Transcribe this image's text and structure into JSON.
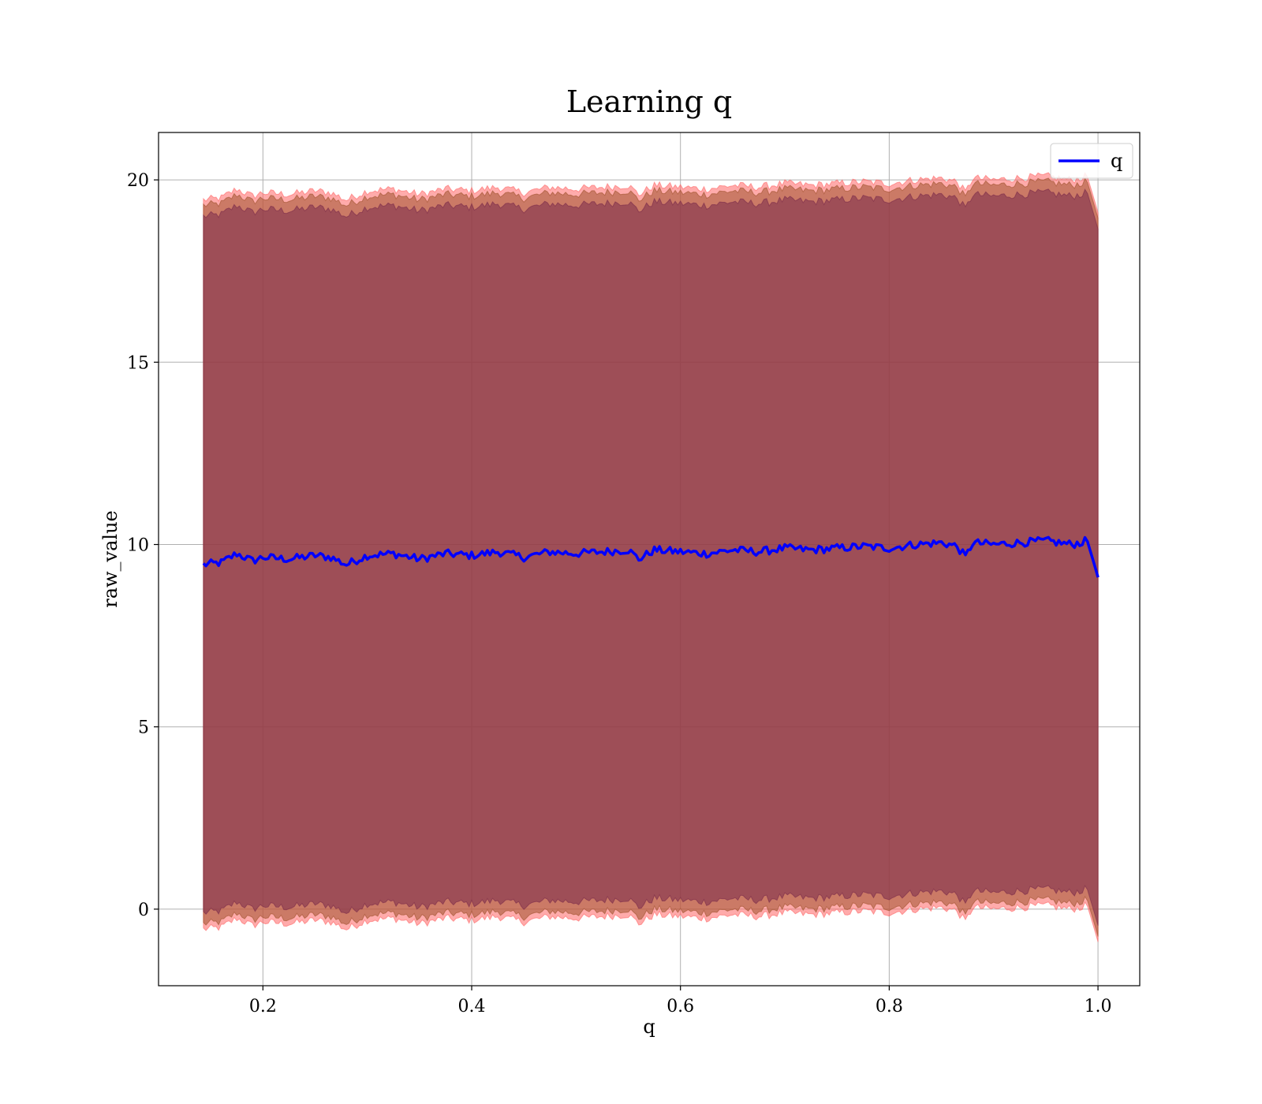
{
  "chart_data": {
    "type": "line",
    "title": "Learning q",
    "xlabel": "q",
    "ylabel": "raw_value",
    "xlim": [
      0.1,
      1.04
    ],
    "ylim": [
      -2.1,
      21.3
    ],
    "x_ticks": [
      0.2,
      0.4,
      0.6,
      0.8,
      1.0
    ],
    "x_tick_labels": [
      "0.2",
      "0.4",
      "0.6",
      "0.8",
      "1.0"
    ],
    "y_ticks": [
      0,
      5,
      10,
      15,
      20
    ],
    "y_tick_labels": [
      "0",
      "5",
      "10",
      "15",
      "20"
    ],
    "grid": true,
    "legend": {
      "position": "top-right",
      "entries": [
        {
          "label": "q",
          "color": "#0000ff"
        }
      ]
    },
    "series": [
      {
        "name": "q",
        "color": "#0000ff",
        "x": [
          0.143,
          0.16,
          0.175,
          0.19,
          0.2,
          0.225,
          0.25,
          0.265,
          0.28,
          0.3,
          0.325,
          0.35,
          0.375,
          0.4,
          0.425,
          0.45,
          0.475,
          0.5,
          0.525,
          0.55,
          0.56,
          0.575,
          0.6,
          0.625,
          0.65,
          0.675,
          0.7,
          0.725,
          0.75,
          0.775,
          0.8,
          0.825,
          0.85,
          0.865,
          0.873,
          0.88,
          0.9,
          0.925,
          0.95,
          0.975,
          0.99,
          1.0
        ],
        "y": [
          9.45,
          9.5,
          9.75,
          9.55,
          9.65,
          9.6,
          9.7,
          9.65,
          9.45,
          9.7,
          9.75,
          9.6,
          9.75,
          9.7,
          9.8,
          9.65,
          9.8,
          9.75,
          9.8,
          9.85,
          9.6,
          9.85,
          9.8,
          9.75,
          9.85,
          9.8,
          9.9,
          9.85,
          9.9,
          9.95,
          9.9,
          10.0,
          10.05,
          9.95,
          9.65,
          10.05,
          10.0,
          10.05,
          10.1,
          10.0,
          10.1,
          9.1
        ]
      }
    ],
    "bands": [
      {
        "color": "#ff6666",
        "offset": 10.0
      },
      {
        "color": "#a0522d",
        "offset": 9.85
      },
      {
        "color": "#7a2a4a",
        "offset": 9.55
      }
    ]
  }
}
